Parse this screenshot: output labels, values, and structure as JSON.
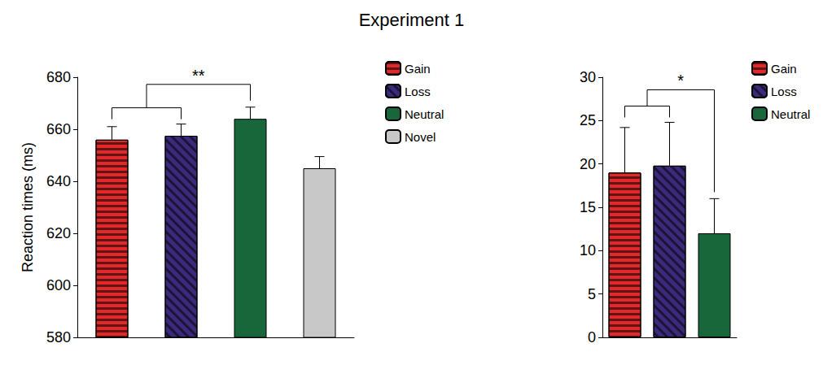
{
  "title": "Experiment 1",
  "chart_data": [
    {
      "type": "bar",
      "categories": [
        "Gain",
        "Loss",
        "Neutral",
        "Novel"
      ],
      "values": [
        656,
        657.5,
        664,
        645
      ],
      "errors": [
        5,
        4.5,
        4.5,
        4.5
      ],
      "colors": [
        "#e0292a",
        "#3b2a7c",
        "#17673a",
        "#c8c8c8"
      ],
      "y_label": "Reaction times (ms)",
      "ylim": [
        580,
        680
      ],
      "yticks": [
        580,
        600,
        620,
        640,
        660,
        680
      ],
      "grid": false,
      "legend": "right",
      "tick_labels": "y",
      "annotations": [
        {
          "text": "**",
          "groups": [
            [
              "Gain",
              "Loss"
            ],
            [
              "Neutral"
            ]
          ]
        }
      ]
    },
    {
      "type": "bar",
      "categories": [
        "Gain",
        "Loss",
        "Neutral"
      ],
      "values": [
        19,
        19.8,
        12
      ],
      "errors": [
        5.2,
        5,
        4
      ],
      "colors": [
        "#e0292a",
        "#3b2a7c",
        "#17673a"
      ],
      "ylim": [
        0,
        30
      ],
      "yticks": [
        0,
        5,
        10,
        15,
        20,
        25,
        30
      ],
      "grid": false,
      "legend": "right",
      "tick_labels": "y",
      "annotations": [
        {
          "text": "*",
          "groups": [
            [
              "Gain",
              "Loss"
            ],
            [
              "Neutral"
            ]
          ]
        }
      ]
    }
  ]
}
